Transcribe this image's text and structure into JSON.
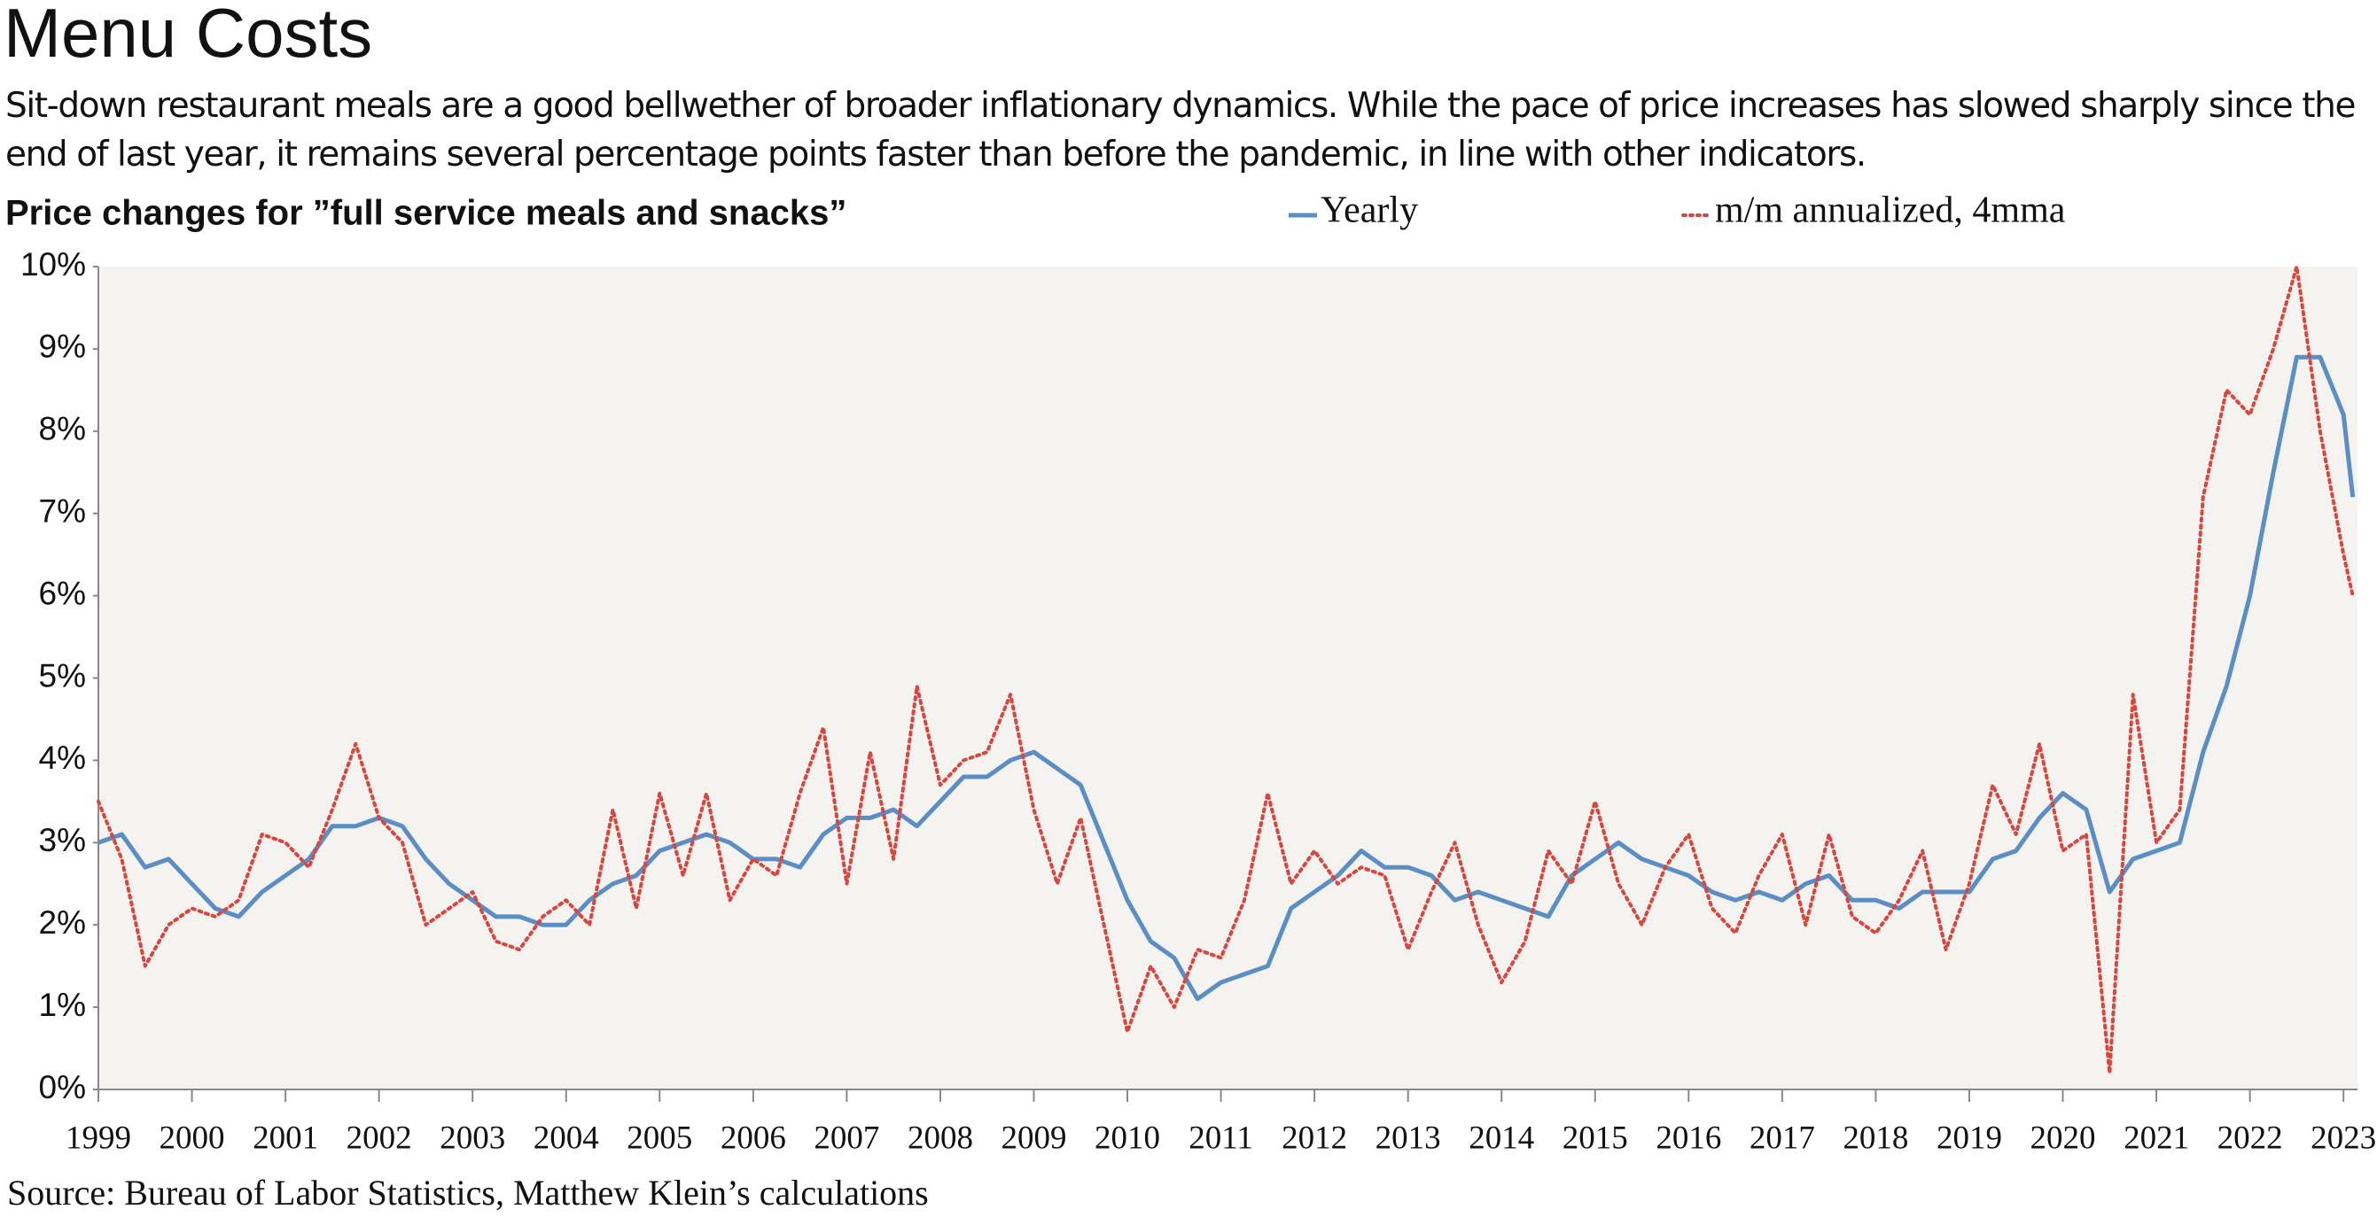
{
  "chart_data": {
    "type": "line",
    "title": "Menu Costs",
    "subtitle": "Sit-down restaurant meals are a good bellwether of broader inflationary dynamics. While the pace of price increases has slowed sharply since the end of last year, it remains several percentage points faster than before the pandemic, in line with other indicators.",
    "chart_title": "Price changes for ”full service meals and snacks”",
    "source": "Source: Bureau of Labor Statistics, Matthew Klein’s calculations",
    "x": [
      1999,
      1999.25,
      1999.5,
      1999.75,
      2000,
      2000.25,
      2000.5,
      2000.75,
      2001,
      2001.25,
      2001.5,
      2001.75,
      2002,
      2002.25,
      2002.5,
      2002.75,
      2003,
      2003.25,
      2003.5,
      2003.75,
      2004,
      2004.25,
      2004.5,
      2004.75,
      2005,
      2005.25,
      2005.5,
      2005.75,
      2006,
      2006.25,
      2006.5,
      2006.75,
      2007,
      2007.25,
      2007.5,
      2007.75,
      2008,
      2008.25,
      2008.5,
      2008.75,
      2009,
      2009.25,
      2009.5,
      2009.75,
      2010,
      2010.25,
      2010.5,
      2010.75,
      2011,
      2011.25,
      2011.5,
      2011.75,
      2012,
      2012.25,
      2012.5,
      2012.75,
      2013,
      2013.25,
      2013.5,
      2013.75,
      2014,
      2014.25,
      2014.5,
      2014.75,
      2015,
      2015.25,
      2015.5,
      2015.75,
      2016,
      2016.25,
      2016.5,
      2016.75,
      2017,
      2017.25,
      2017.5,
      2017.75,
      2018,
      2018.25,
      2018.5,
      2018.75,
      2019,
      2019.25,
      2019.5,
      2019.75,
      2020,
      2020.25,
      2020.5,
      2020.75,
      2021,
      2021.25,
      2021.5,
      2021.75,
      2022,
      2022.25,
      2022.5,
      2022.75,
      2023,
      2023.1
    ],
    "series": [
      {
        "name": "Yearly",
        "color": "#5b8ec4",
        "style": "solid",
        "values": [
          3.0,
          3.1,
          2.7,
          2.8,
          2.5,
          2.2,
          2.1,
          2.4,
          2.6,
          2.8,
          3.2,
          3.2,
          3.3,
          3.2,
          2.8,
          2.5,
          2.3,
          2.1,
          2.1,
          2.0,
          2.0,
          2.3,
          2.5,
          2.6,
          2.9,
          3.0,
          3.1,
          3.0,
          2.8,
          2.8,
          2.7,
          3.1,
          3.3,
          3.3,
          3.4,
          3.2,
          3.5,
          3.8,
          3.8,
          4.0,
          4.1,
          3.9,
          3.7,
          3.0,
          2.3,
          1.8,
          1.6,
          1.1,
          1.3,
          1.4,
          1.5,
          2.2,
          2.4,
          2.6,
          2.9,
          2.7,
          2.7,
          2.6,
          2.3,
          2.4,
          2.3,
          2.2,
          2.1,
          2.6,
          2.8,
          3.0,
          2.8,
          2.7,
          2.6,
          2.4,
          2.3,
          2.4,
          2.3,
          2.5,
          2.6,
          2.3,
          2.3,
          2.2,
          2.4,
          2.4,
          2.4,
          2.8,
          2.9,
          3.3,
          3.6,
          3.4,
          2.4,
          2.8,
          2.9,
          3.0,
          4.1,
          4.9,
          6.0,
          7.5,
          8.9,
          8.9,
          8.2,
          7.2
        ]
      },
      {
        "name": "m/m annualized, 4mma",
        "color": "#d9463f",
        "style": "dotted",
        "values": [
          3.5,
          2.8,
          1.5,
          2.0,
          2.2,
          2.1,
          2.3,
          3.1,
          3.0,
          2.7,
          3.4,
          4.2,
          3.3,
          3.0,
          2.0,
          2.2,
          2.4,
          1.8,
          1.7,
          2.1,
          2.3,
          2.0,
          3.4,
          2.2,
          3.6,
          2.6,
          3.6,
          2.3,
          2.8,
          2.6,
          3.6,
          4.4,
          2.5,
          4.1,
          2.8,
          4.9,
          3.7,
          4.0,
          4.1,
          4.8,
          3.4,
          2.5,
          3.3,
          2.0,
          0.7,
          1.5,
          1.0,
          1.7,
          1.6,
          2.3,
          3.6,
          2.5,
          2.9,
          2.5,
          2.7,
          2.6,
          1.7,
          2.4,
          3.0,
          2.0,
          1.3,
          1.8,
          2.9,
          2.5,
          3.5,
          2.5,
          2.0,
          2.7,
          3.1,
          2.2,
          1.9,
          2.6,
          3.1,
          2.0,
          3.1,
          2.1,
          1.9,
          2.3,
          2.9,
          1.7,
          2.5,
          3.7,
          3.1,
          4.2,
          2.9,
          3.1,
          0.2,
          4.8,
          3.0,
          3.4,
          7.2,
          8.5,
          8.2,
          9.0,
          10.0,
          8.0,
          6.5,
          6.0
        ]
      }
    ],
    "xlim": [
      1999,
      2023.15
    ],
    "xticks": [
      1999,
      2000,
      2001,
      2002,
      2003,
      2004,
      2005,
      2006,
      2007,
      2008,
      2009,
      2010,
      2011,
      2012,
      2013,
      2014,
      2015,
      2016,
      2017,
      2018,
      2019,
      2020,
      2021,
      2022,
      2023
    ],
    "ylim": [
      0,
      10
    ],
    "yticks": [
      {
        "value": 0,
        "label": "0%"
      },
      {
        "value": 1,
        "label": "1%"
      },
      {
        "value": 2,
        "label": "2%"
      },
      {
        "value": 3,
        "label": "3%"
      },
      {
        "value": 4,
        "label": "4%"
      },
      {
        "value": 5,
        "label": "5%"
      },
      {
        "value": 6,
        "label": "6%"
      },
      {
        "value": 7,
        "label": "7%"
      },
      {
        "value": 8,
        "label": "8%"
      },
      {
        "value": 9,
        "label": "9%"
      },
      {
        "value": 10,
        "label": "10%"
      }
    ],
    "plot_background": "#f5f3ef"
  }
}
